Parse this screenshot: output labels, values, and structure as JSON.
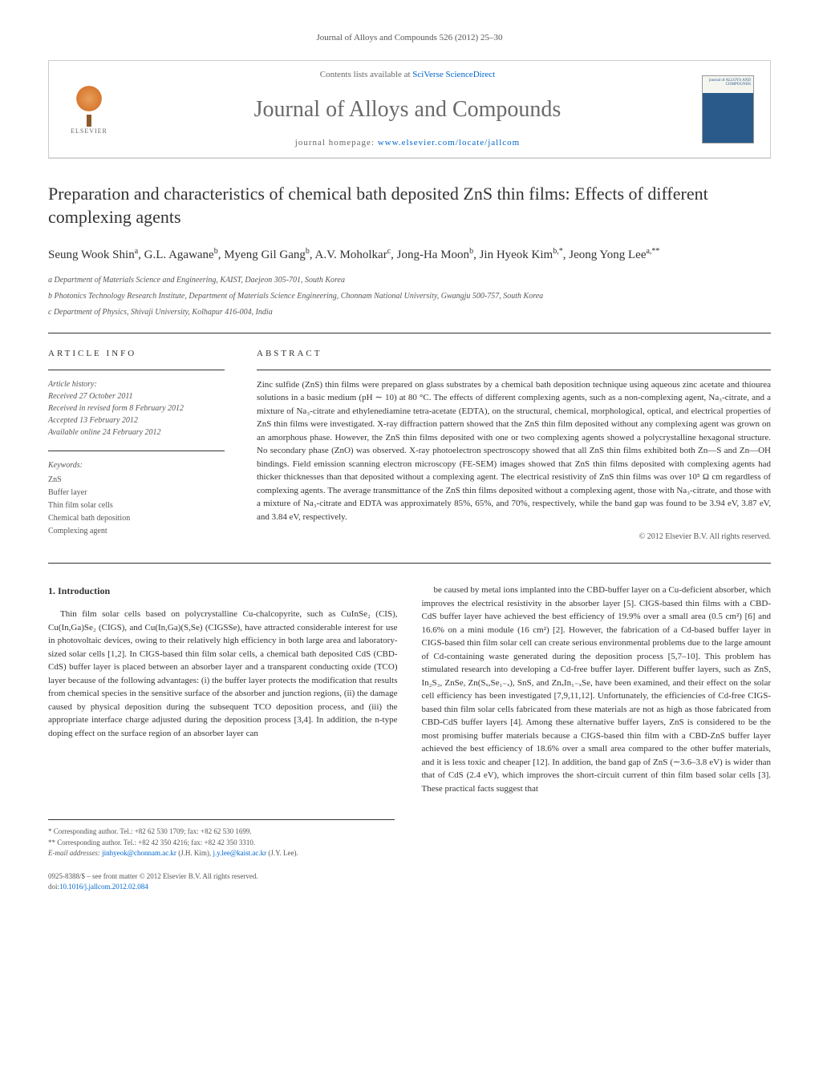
{
  "journal_ref": "Journal of Alloys and Compounds 526 (2012) 25–30",
  "header": {
    "contents_prefix": "Contents lists available at ",
    "contents_link": "SciVerse ScienceDirect",
    "journal_name": "Journal of Alloys and Compounds",
    "homepage_prefix": "journal homepage: ",
    "homepage_link": "www.elsevier.com/locate/jallcom",
    "publisher": "ELSEVIER"
  },
  "title": "Preparation and characteristics of chemical bath deposited ZnS thin films: Effects of different complexing agents",
  "authors_html": "Seung Wook Shin<sup>a</sup>, G.L. Agawane<sup>b</sup>, Myeng Gil Gang<sup>b</sup>, A.V. Moholkar<sup>c</sup>, Jong-Ha Moon<sup>b</sup>, Jin Hyeok Kim<sup>b,*</sup>, Jeong Yong Lee<sup>a,**</sup>",
  "affiliations": [
    "a Department of Materials Science and Engineering, KAIST, Daejeon 305-701, South Korea",
    "b Photonics Technology Research Institute, Department of Materials Science Engineering, Chonnam National University, Gwangju 500-757, South Korea",
    "c Department of Physics, Shivaji University, Kolhapur 416-004, India"
  ],
  "article_info": {
    "heading": "ARTICLE INFO",
    "history_label": "Article history:",
    "received": "Received 27 October 2011",
    "revised": "Received in revised form 8 February 2012",
    "accepted": "Accepted 13 February 2012",
    "online": "Available online 24 February 2012",
    "keywords_label": "Keywords:",
    "keywords": [
      "ZnS",
      "Buffer layer",
      "Thin film solar cells",
      "Chemical bath deposition",
      "Complexing agent"
    ]
  },
  "abstract": {
    "heading": "ABSTRACT",
    "text": "Zinc sulfide (ZnS) thin films were prepared on glass substrates by a chemical bath deposition technique using aqueous zinc acetate and thiourea solutions in a basic medium (pH ∼ 10) at 80 °C. The effects of different complexing agents, such as a non-complexing agent, Na₃-citrate, and a mixture of Na₃-citrate and ethylenediamine tetra-acetate (EDTA), on the structural, chemical, morphological, optical, and electrical properties of ZnS thin films were investigated. X-ray diffraction pattern showed that the ZnS thin film deposited without any complexing agent was grown on an amorphous phase. However, the ZnS thin films deposited with one or two complexing agents showed a polycrystalline hexagonal structure. No secondary phase (ZnO) was observed. X-ray photoelectron spectroscopy showed that all ZnS thin films exhibited both Zn—S and Zn—OH bindings. Field emission scanning electron microscopy (FE-SEM) images showed that ZnS thin films deposited with complexing agents had thicker thicknesses than that deposited without a complexing agent. The electrical resistivity of ZnS thin films was over 10⁵ Ω cm regardless of complexing agents. The average transmittance of the ZnS thin films deposited without a complexing agent, those with Na₃-citrate, and those with a mixture of Na₃-citrate and EDTA was approximately 85%, 65%, and 70%, respectively, while the band gap was found to be 3.94 eV, 3.87 eV, and 3.84 eV, respectively.",
    "copyright": "© 2012 Elsevier B.V. All rights reserved."
  },
  "body": {
    "section_heading": "1. Introduction",
    "col1": "Thin film solar cells based on polycrystalline Cu-chalcopyrite, such as CuInSe₂ (CIS), Cu(In,Ga)Se₂ (CIGS), and Cu(In,Ga)(S,Se) (CIGSSe), have attracted considerable interest for use in photovoltaic devices, owing to their relatively high efficiency in both large area and laboratory-sized solar cells [1,2]. In CIGS-based thin film solar cells, a chemical bath deposited CdS (CBD-CdS) buffer layer is placed between an absorber layer and a transparent conducting oxide (TCO) layer because of the following advantages: (i) the buffer layer protects the modification that results from chemical species in the sensitive surface of the absorber and junction regions, (ii) the damage caused by physical deposition during the subsequent TCO deposition process, and (iii) the appropriate interface charge adjusted during the deposition process [3,4]. In addition, the n-type doping effect on the surface region of an absorber layer can",
    "col2": "be caused by metal ions implanted into the CBD-buffer layer on a Cu-deficient absorber, which improves the electrical resistivity in the absorber layer [5]. CIGS-based thin films with a CBD-CdS buffer layer have achieved the best efficiency of 19.9% over a small area (0.5 cm²) [6] and 16.6% on a mini module (16 cm²) [2]. However, the fabrication of a Cd-based buffer layer in CIGS-based thin film solar cell can create serious environmental problems due to the large amount of Cd-containing waste generated during the deposition process [5,7–10]. This problem has stimulated research into developing a Cd-free buffer layer. Different buffer layers, such as ZnS, In₂S₃, ZnSe, Zn(Sₓ,Se₁₋ₓ), SnS, and ZnₓIn₁₋ₓSe, have been examined, and their effect on the solar cell efficiency has been investigated [7,9,11,12]. Unfortunately, the efficiencies of Cd-free CIGS-based thin film solar cells fabricated from these materials are not as high as those fabricated from CBD-CdS buffer layers [4]. Among these alternative buffer layers, ZnS is considered to be the most promising buffer materials because a CIGS-based thin film with a CBD-ZnS buffer layer achieved the best efficiency of 18.6% over a small area compared to the other buffer materials, and it is less toxic and cheaper [12]. In addition, the band gap of ZnS (∼3.6–3.8 eV) is wider than that of CdS (2.4 eV), which improves the short-circuit current of thin film based solar cells [3]. These practical facts suggest that"
  },
  "footnotes": {
    "corr1": "* Corresponding author. Tel.: +82 62 530 1709; fax: +82 62 530 1699.",
    "corr2": "** Corresponding author. Tel.: +82 42 350 4216; fax: +82 42 350 3310.",
    "emails_label": "E-mail addresses: ",
    "email1": "jinhyeok@chonnam.ac.kr",
    "email1_name": " (J.H. Kim), ",
    "email2": "j.y.lee@kaist.ac.kr",
    "email2_name": " (J.Y. Lee)."
  },
  "doi": {
    "line1": "0925-8388/$ – see front matter © 2012 Elsevier B.V. All rights reserved.",
    "line2_prefix": "doi:",
    "line2_link": "10.1016/j.jallcom.2012.02.084"
  },
  "colors": {
    "link": "#0066cc",
    "text": "#333333",
    "muted": "#555555",
    "border": "#cccccc",
    "journal_title": "#6a6a6a"
  }
}
